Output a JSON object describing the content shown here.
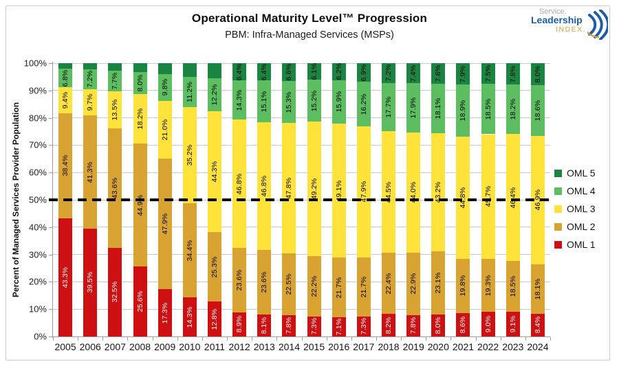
{
  "logo": {
    "line1": "Service.",
    "line2": "Leadership",
    "line3": "INDEX.",
    "blue": "#1d5ca8",
    "gold": "#d2a33c",
    "gray": "#a9acaf"
  },
  "chart_data": {
    "type": "bar",
    "stacked": true,
    "title": "Operational Maturity Level™ Progression",
    "subtitle": "PBM: Infra-Managed Services (MSPs)",
    "ylabel": "Percent of Managed Services Provider Population",
    "xlabel": "",
    "ylim": [
      0,
      100
    ],
    "ytick_step": 10,
    "ytick_labels": [
      "0%",
      "10%",
      "20%",
      "30%",
      "40%",
      "50%",
      "60%",
      "70%",
      "80%",
      "90%",
      "100%"
    ],
    "grid": true,
    "value_suffix": "%",
    "label_threshold": 6.0,
    "reference_line": {
      "y": 50,
      "style": "dashed",
      "color": "#000000"
    },
    "legend_position": "right",
    "legend_order": [
      "OML 5",
      "OML 4",
      "OML 3",
      "OML 2",
      "OML 1"
    ],
    "categories": [
      "2005",
      "2006",
      "2007",
      "2008",
      "2009",
      "2010",
      "2011",
      "2012",
      "2013",
      "2014",
      "2015",
      "2016",
      "2017",
      "2018",
      "2019",
      "2020",
      "2021",
      "2022",
      "2023",
      "2024"
    ],
    "series": [
      {
        "name": "OML 1",
        "color": "#ce1013",
        "label_color": "#ffffff",
        "values": [
          43.3,
          39.5,
          32.5,
          25.6,
          17.3,
          14.3,
          12.8,
          8.9,
          8.1,
          7.8,
          7.3,
          7.1,
          7.3,
          8.2,
          7.8,
          8.0,
          8.6,
          9.0,
          9.1,
          8.4
        ]
      },
      {
        "name": "OML 2",
        "color": "#d9a331",
        "label_color": "#000000",
        "values": [
          38.4,
          41.3,
          43.6,
          44.9,
          47.9,
          34.4,
          25.3,
          23.6,
          23.6,
          22.5,
          22.2,
          21.7,
          21.7,
          22.4,
          22.9,
          23.1,
          19.8,
          19.3,
          18.5,
          18.1
        ]
      },
      {
        "name": "OML 3",
        "color": "#ffe33b",
        "label_color": "#000000",
        "values": [
          9.4,
          9.7,
          13.5,
          18.2,
          21.0,
          35.2,
          44.3,
          46.8,
          46.8,
          47.8,
          49.2,
          49.1,
          47.9,
          44.5,
          44.0,
          43.2,
          44.8,
          45.7,
          46.4,
          46.9
        ]
      },
      {
        "name": "OML 4",
        "color": "#5cbe60",
        "label_color": "#000000",
        "values": [
          6.8,
          7.2,
          7.7,
          8.0,
          9.8,
          11.2,
          12.2,
          14.3,
          15.1,
          15.3,
          15.2,
          15.9,
          16.2,
          17.7,
          17.9,
          18.1,
          18.9,
          18.5,
          18.2,
          18.6
        ]
      },
      {
        "name": "OML 5",
        "color": "#1a8443",
        "label_color": "#000000",
        "values": [
          2.1,
          2.3,
          2.7,
          3.3,
          4.0,
          4.9,
          5.4,
          6.4,
          6.4,
          6.6,
          6.1,
          6.2,
          6.9,
          7.2,
          7.4,
          7.6,
          7.9,
          7.5,
          7.8,
          8.0
        ]
      }
    ]
  }
}
